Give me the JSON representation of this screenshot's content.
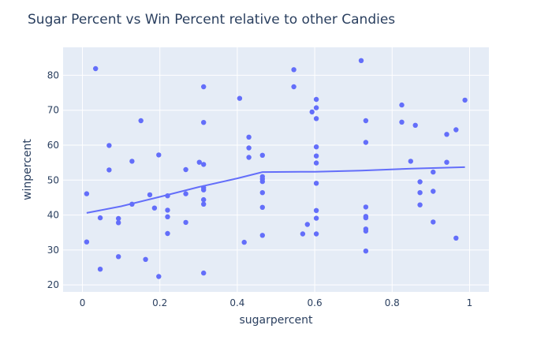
{
  "chart_data": {
    "type": "scatter",
    "title": "Sugar Percent vs Win Percent relative to other Candies",
    "xlabel": "sugarpercent",
    "ylabel": "winpercent",
    "xlim": [
      -0.05,
      1.05
    ],
    "ylim": [
      18,
      88
    ],
    "x_ticks": [
      0,
      0.2,
      0.4,
      0.6,
      0.8,
      1
    ],
    "x_tick_labels": [
      "0",
      "0.2",
      "0.4",
      "0.6",
      "0.8",
      "1"
    ],
    "y_ticks": [
      20,
      30,
      40,
      50,
      60,
      70,
      80
    ],
    "y_tick_labels": [
      "20",
      "30",
      "40",
      "50",
      "60",
      "70",
      "80"
    ],
    "grid": true,
    "marker_color": "#636efa",
    "background_color": "#e5ecf6",
    "series": [
      {
        "type": "scatter",
        "points": [
          [
            0.011,
            46.1
          ],
          [
            0.011,
            32.3
          ],
          [
            0.034,
            81.9
          ],
          [
            0.046,
            39.2
          ],
          [
            0.046,
            24.5
          ],
          [
            0.069,
            59.9
          ],
          [
            0.069,
            52.9
          ],
          [
            0.093,
            39.0
          ],
          [
            0.093,
            37.8
          ],
          [
            0.093,
            28.1
          ],
          [
            0.128,
            55.4
          ],
          [
            0.128,
            43.1
          ],
          [
            0.151,
            67.0
          ],
          [
            0.163,
            27.3
          ],
          [
            0.174,
            45.8
          ],
          [
            0.186,
            42.0
          ],
          [
            0.197,
            57.2
          ],
          [
            0.197,
            22.4
          ],
          [
            0.22,
            45.5
          ],
          [
            0.22,
            41.4
          ],
          [
            0.22,
            39.5
          ],
          [
            0.22,
            34.7
          ],
          [
            0.267,
            53.0
          ],
          [
            0.267,
            46.1
          ],
          [
            0.267,
            37.9
          ],
          [
            0.302,
            55.1
          ],
          [
            0.313,
            76.7
          ],
          [
            0.313,
            66.5
          ],
          [
            0.313,
            54.5
          ],
          [
            0.313,
            47.8
          ],
          [
            0.313,
            47.2
          ],
          [
            0.313,
            44.4
          ],
          [
            0.313,
            43.1
          ],
          [
            0.313,
            23.4
          ],
          [
            0.406,
            73.4
          ],
          [
            0.418,
            32.2
          ],
          [
            0.43,
            62.3
          ],
          [
            0.43,
            59.2
          ],
          [
            0.43,
            56.5
          ],
          [
            0.465,
            57.1
          ],
          [
            0.465,
            51.0
          ],
          [
            0.465,
            50.3
          ],
          [
            0.465,
            49.6
          ],
          [
            0.465,
            46.4
          ],
          [
            0.465,
            42.2
          ],
          [
            0.465,
            34.2
          ],
          [
            0.546,
            81.6
          ],
          [
            0.546,
            76.7
          ],
          [
            0.569,
            34.6
          ],
          [
            0.581,
            37.3
          ],
          [
            0.593,
            69.5
          ],
          [
            0.604,
            73.1
          ],
          [
            0.604,
            70.7
          ],
          [
            0.604,
            67.6
          ],
          [
            0.604,
            59.5
          ],
          [
            0.604,
            56.9
          ],
          [
            0.604,
            54.9
          ],
          [
            0.604,
            49.1
          ],
          [
            0.604,
            41.3
          ],
          [
            0.604,
            39.1
          ],
          [
            0.604,
            34.6
          ],
          [
            0.72,
            84.2
          ],
          [
            0.732,
            67.0
          ],
          [
            0.732,
            60.8
          ],
          [
            0.732,
            42.3
          ],
          [
            0.732,
            39.6
          ],
          [
            0.732,
            39.2
          ],
          [
            0.732,
            36.0
          ],
          [
            0.732,
            35.4
          ],
          [
            0.732,
            29.7
          ],
          [
            0.825,
            71.5
          ],
          [
            0.825,
            66.6
          ],
          [
            0.848,
            55.4
          ],
          [
            0.86,
            65.7
          ],
          [
            0.872,
            49.5
          ],
          [
            0.872,
            46.4
          ],
          [
            0.872,
            42.9
          ],
          [
            0.906,
            52.3
          ],
          [
            0.906,
            46.8
          ],
          [
            0.906,
            38.0
          ],
          [
            0.941,
            63.1
          ],
          [
            0.941,
            55.1
          ],
          [
            0.965,
            64.4
          ],
          [
            0.965,
            33.4
          ],
          [
            0.988,
            72.9
          ]
        ]
      },
      {
        "type": "line",
        "points": [
          [
            0.011,
            40.6
          ],
          [
            0.1,
            42.5
          ],
          [
            0.2,
            45.2
          ],
          [
            0.3,
            48.0
          ],
          [
            0.4,
            50.5
          ],
          [
            0.465,
            52.3
          ],
          [
            0.6,
            52.4
          ],
          [
            0.72,
            52.7
          ],
          [
            0.85,
            53.3
          ],
          [
            0.988,
            53.7
          ]
        ]
      }
    ]
  }
}
